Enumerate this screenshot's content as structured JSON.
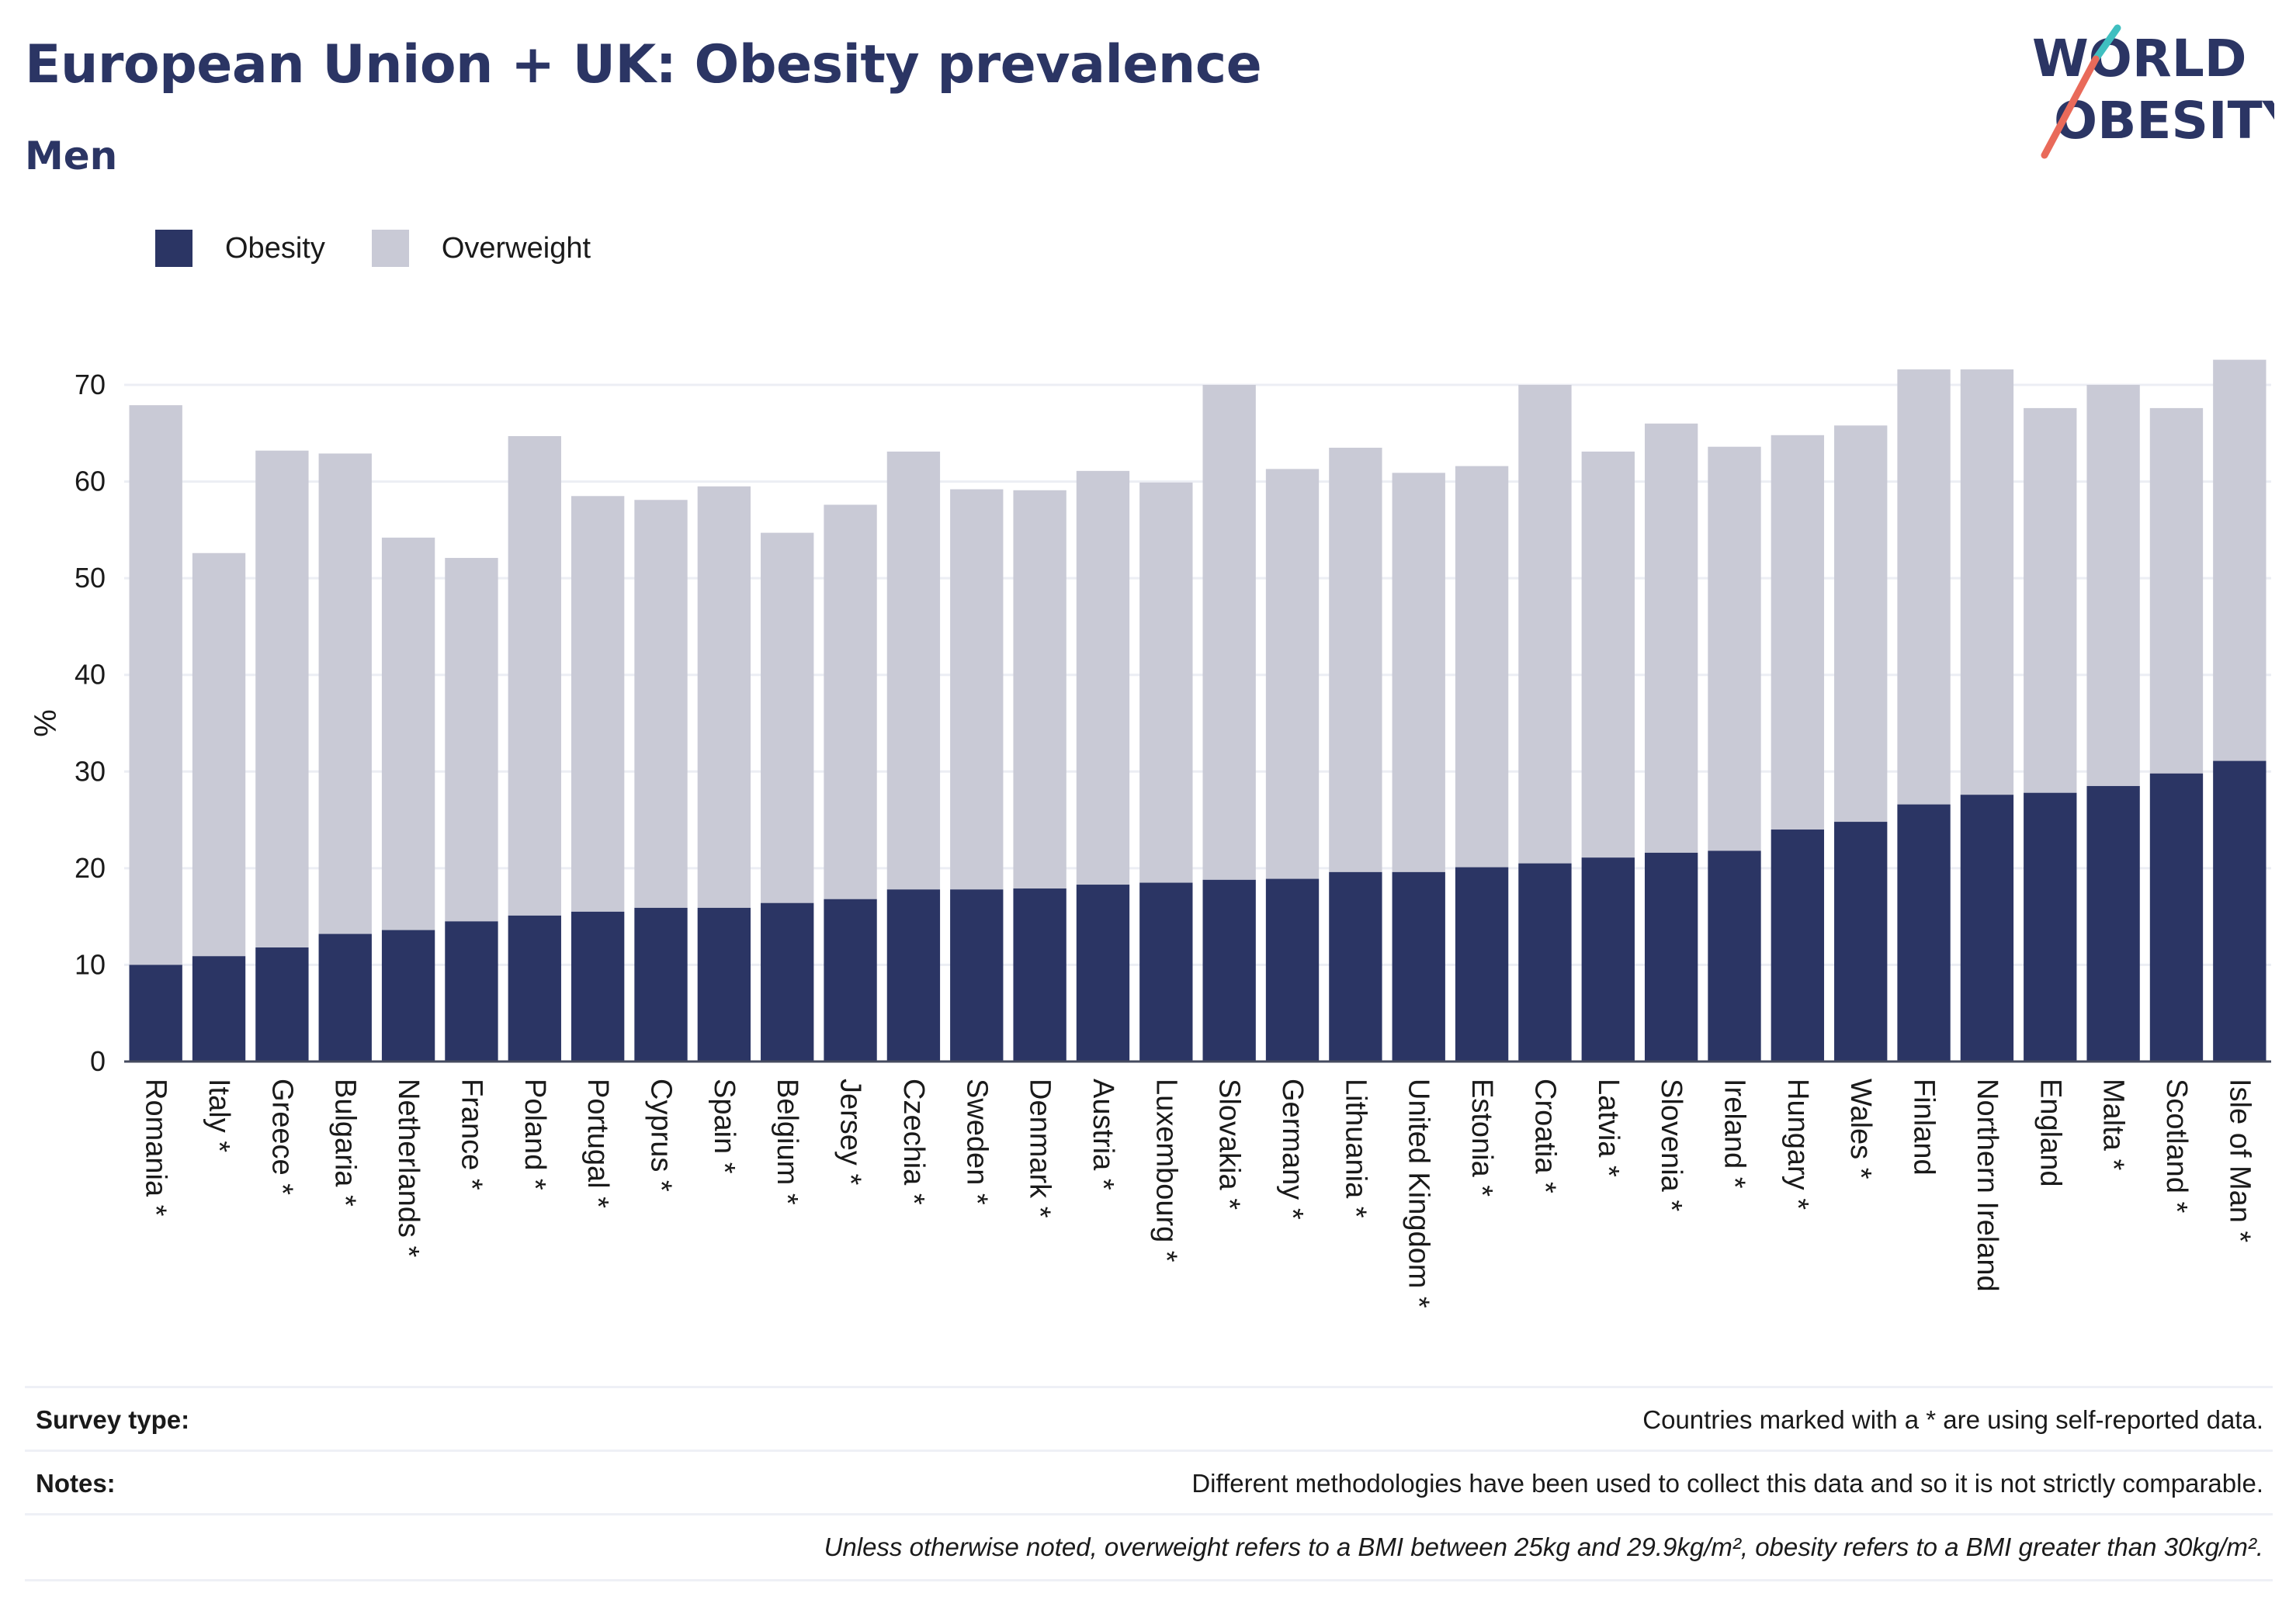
{
  "header": {
    "title": "European Union + UK: Obesity prevalence",
    "subtitle": "Men"
  },
  "logo": {
    "line1": "WORLD",
    "line2": "OBESITY",
    "accent_teal": "#3fbfc0",
    "accent_coral": "#e96a5a"
  },
  "legend": {
    "items": [
      {
        "label": "Obesity",
        "color": "#2b3564"
      },
      {
        "label": "Overweight",
        "color": "#c9cad6"
      }
    ]
  },
  "chart_data": {
    "type": "bar",
    "stacked": true,
    "ylabel": "%",
    "xlabel": "",
    "ylim": [
      0,
      75
    ],
    "yticks": [
      0,
      10,
      20,
      30,
      40,
      50,
      60,
      70
    ],
    "grid": true,
    "legend_position": "top-left",
    "categories": [
      "Romania *",
      "Italy *",
      "Greece *",
      "Bulgaria *",
      "Netherlands *",
      "France *",
      "Poland *",
      "Portugal *",
      "Cyprus *",
      "Spain *",
      "Belgium *",
      "Jersey *",
      "Czechia *",
      "Sweden *",
      "Denmark *",
      "Austria *",
      "Luxembourg *",
      "Slovakia *",
      "Germany *",
      "Lithuania *",
      "United Kingdom *",
      "Estonia *",
      "Croatia *",
      "Latvia *",
      "Slovenia *",
      "Ireland *",
      "Hungary *",
      "Wales *",
      "Finland",
      "Northern Ireland",
      "England",
      "Malta *",
      "Scotland *",
      "Isle of Man *"
    ],
    "series": [
      {
        "name": "Obesity",
        "color": "#2b3564",
        "values": [
          10.0,
          10.9,
          11.8,
          13.2,
          13.6,
          14.5,
          15.1,
          15.5,
          15.9,
          15.9,
          16.4,
          16.8,
          17.8,
          17.8,
          17.9,
          18.3,
          18.5,
          18.8,
          18.9,
          19.6,
          19.6,
          20.1,
          20.5,
          21.1,
          21.6,
          21.8,
          24.0,
          24.8,
          26.6,
          27.6,
          27.8,
          28.5,
          29.8,
          31.1
        ]
      },
      {
        "name": "Overweight",
        "color": "#c9cad6",
        "values": [
          57.9,
          41.7,
          51.4,
          49.7,
          40.6,
          37.6,
          49.6,
          43.0,
          42.2,
          43.6,
          38.3,
          40.8,
          45.3,
          41.4,
          41.2,
          42.8,
          41.4,
          51.2,
          42.4,
          43.9,
          41.3,
          41.5,
          49.5,
          42.0,
          44.4,
          41.8,
          40.8,
          41.0,
          45.0,
          44.0,
          39.8,
          41.5,
          37.8,
          41.5
        ]
      }
    ]
  },
  "footer": {
    "survey_label": "Survey type:",
    "survey_text": "Countries marked with a * are using self-reported data.",
    "notes_label": "Notes:",
    "notes_text": "Different methodologies have been used to collect this data and so it is not strictly comparable.",
    "definition_text": "Unless otherwise noted, overweight refers to a BMI between 25kg and 29.9kg/m², obesity refers to a BMI greater than 30kg/m²."
  }
}
